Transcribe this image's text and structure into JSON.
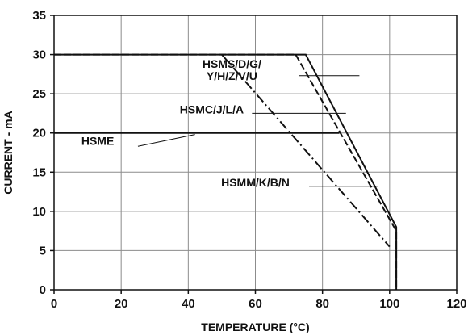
{
  "chart_data": {
    "type": "line",
    "title": "",
    "xlabel": "TEMPERATURE (°C)",
    "ylabel": "CURRENT - mA",
    "xlim": [
      0,
      120
    ],
    "ylim": [
      0,
      35
    ],
    "xticks": [
      0,
      20,
      40,
      60,
      80,
      100,
      120
    ],
    "yticks": [
      0,
      5,
      10,
      15,
      20,
      25,
      30,
      35
    ],
    "grid": true,
    "series": [
      {
        "name": "HSMS/D/G/Y/H/Z/V/U",
        "style": "solid",
        "color": "#111111",
        "points": [
          [
            0,
            30
          ],
          [
            75,
            30
          ],
          [
            102,
            8
          ],
          [
            102,
            0
          ]
        ]
      },
      {
        "name": "HSMC/J/L/A",
        "style": "dashed",
        "color": "#111111",
        "points": [
          [
            0,
            30
          ],
          [
            72,
            30
          ],
          [
            102,
            7.5
          ],
          [
            102,
            0
          ]
        ]
      },
      {
        "name": "HSME",
        "style": "solid",
        "color": "#111111",
        "points": [
          [
            0,
            20
          ],
          [
            85,
            20
          ]
        ]
      },
      {
        "name": "HSMM/K/B/N",
        "style": "dashdot",
        "color": "#111111",
        "points": [
          [
            50,
            30
          ],
          [
            100,
            5.5
          ]
        ]
      }
    ],
    "annotations": [
      {
        "lines": [
          "HSMS/D/G/",
          "Y/H/Z/V/U"
        ],
        "x": 53,
        "y": 27.5,
        "leader": [
          [
            73,
            27.3
          ],
          [
            91,
            27.3
          ]
        ]
      },
      {
        "lines": [
          "HSMC/J/L/A"
        ],
        "x": 47,
        "y": 22.5,
        "leader": [
          [
            59,
            22.5
          ],
          [
            87,
            22.5
          ]
        ]
      },
      {
        "lines": [
          "HSME"
        ],
        "x": 13,
        "y": 18.5,
        "leader": [
          [
            25,
            18.3
          ],
          [
            42,
            19.8
          ]
        ]
      },
      {
        "lines": [
          "HSMM/K/B/N"
        ],
        "x": 60,
        "y": 13.2,
        "leader": [
          [
            76,
            13.2
          ],
          [
            96.5,
            13.2
          ]
        ]
      }
    ]
  }
}
